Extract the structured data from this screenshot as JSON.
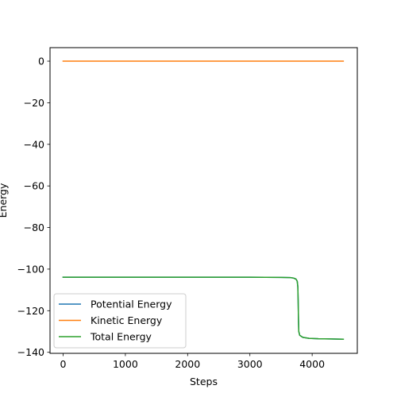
{
  "chart_data": {
    "type": "line",
    "title": "",
    "xlabel": "Steps",
    "ylabel": "Energy",
    "xlim": [
      -210,
      4725
    ],
    "ylim": [
      -140.5,
      6.5
    ],
    "xticks": [
      0,
      1000,
      2000,
      3000,
      4000
    ],
    "xtick_labels": [
      "0",
      "1000",
      "2000",
      "3000",
      "4000"
    ],
    "yticks": [
      0,
      -20,
      -40,
      -60,
      -80,
      -100,
      -120,
      -140
    ],
    "ytick_labels": [
      "0",
      "−20",
      "−40",
      "−60",
      "−80",
      "−100",
      "−120",
      "−140"
    ],
    "grid": false,
    "legend_position": "lower-left",
    "series": [
      {
        "name": "Potential Energy",
        "color": "#1f77b4",
        "x": [
          0,
          1000,
          2000,
          3000,
          3500,
          3650,
          3700,
          3740,
          3760,
          3770,
          3775,
          3780,
          3785,
          3800,
          3850,
          3950,
          4100,
          4300,
          4500
        ],
        "y": [
          -103.9,
          -103.9,
          -103.9,
          -103.9,
          -104.0,
          -104.1,
          -104.3,
          -104.8,
          -105.8,
          -108.5,
          -115.0,
          -124.0,
          -130.0,
          -131.8,
          -132.8,
          -133.3,
          -133.5,
          -133.6,
          -133.7
        ]
      },
      {
        "name": "Kinetic Energy",
        "color": "#ff7f0e",
        "x": [
          0,
          4500
        ],
        "y": [
          0,
          0
        ]
      },
      {
        "name": "Total Energy",
        "color": "#2ca02c",
        "x": [
          0,
          1000,
          2000,
          3000,
          3500,
          3650,
          3700,
          3740,
          3760,
          3770,
          3775,
          3780,
          3785,
          3800,
          3850,
          3950,
          4100,
          4300,
          4500
        ],
        "y": [
          -103.9,
          -103.9,
          -103.9,
          -103.9,
          -104.0,
          -104.1,
          -104.3,
          -104.8,
          -105.8,
          -108.5,
          -115.0,
          -124.0,
          -130.0,
          -131.8,
          -132.8,
          -133.3,
          -133.5,
          -133.6,
          -133.7
        ]
      }
    ]
  }
}
